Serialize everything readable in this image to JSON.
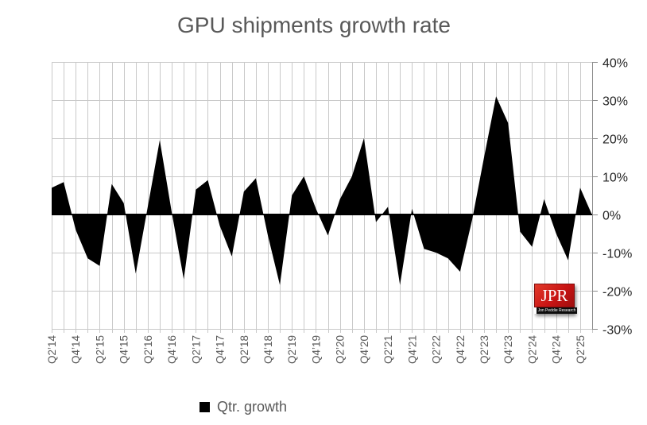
{
  "title": "GPU shipments growth rate",
  "legend": {
    "label": "Qtr. growth",
    "marker_color": "#000000"
  },
  "logo": {
    "text": "JPR",
    "subtext": "Jon Peddie Research",
    "bg_color": "#c81414"
  },
  "colors": {
    "background": "#ffffff",
    "gridline": "#c9c9c9",
    "axis_line": "#8c8c8c",
    "zero_line": "#000000",
    "area_fill": "#000000",
    "title_text": "#595959",
    "y_label_text": "#262626",
    "x_label_text": "#595959"
  },
  "chart_data": {
    "type": "area",
    "title": "GPU shipments growth rate",
    "legend_position": "bottom",
    "grid": "both",
    "xlabel": "",
    "ylabel": "",
    "ylim": [
      -30,
      40
    ],
    "y_ticks": {
      "values": [
        40,
        30,
        20,
        10,
        0,
        -10,
        -20,
        -30
      ],
      "labels": [
        "40%",
        "30%",
        "20%",
        "10%",
        "0%",
        "-10%",
        "-20%",
        "-30%"
      ]
    },
    "x_axis_shown_labels": [
      "Q2’14",
      "Q4’14",
      "Q2’15",
      "Q4’15",
      "Q2’16",
      "Q4’16",
      "Q2’17",
      "Q4’17",
      "Q2’18",
      "Q4’18",
      "Q2’19",
      "Q4’19",
      "Q2’20",
      "Q4’20",
      "Q2’21",
      "Q4’21",
      "Q2’22",
      "Q4’22",
      "Q2’23",
      "Q4’23",
      "Q2’24",
      "Q4’24",
      "Q2’25"
    ],
    "x_label_step": 2,
    "categories": [
      "Q2’14",
      "Q3’14",
      "Q4’14",
      "Q1’15",
      "Q2’15",
      "Q3’15",
      "Q4’15",
      "Q1’16",
      "Q2’16",
      "Q3’16",
      "Q4’16",
      "Q1’17",
      "Q2’17",
      "Q3’17",
      "Q4’17",
      "Q1’18",
      "Q2’18",
      "Q3’18",
      "Q4’18",
      "Q1’19",
      "Q2’19",
      "Q3’19",
      "Q4’19",
      "Q1’20",
      "Q2’20",
      "Q3’20",
      "Q4’20",
      "Q1’21",
      "Q2’21",
      "Q3’21",
      "Q4’21",
      "Q1’22",
      "Q2’22",
      "Q3’22",
      "Q4’22",
      "Q1’23",
      "Q2’23",
      "Q3’23",
      "Q4’23",
      "Q1’24",
      "Q2’24",
      "Q3’24",
      "Q4’24",
      "Q1’25",
      "Q2’25"
    ],
    "series": [
      {
        "name": "Qtr. growth",
        "color": "#000000",
        "values": [
          7,
          8.5,
          -4,
          -11.5,
          -13.5,
          8,
          3,
          -15.5,
          2,
          19.5,
          0.5,
          -17,
          6.5,
          9,
          -3,
          -11,
          6,
          9.5,
          -5.5,
          -18.5,
          5,
          10,
          1.5,
          -5.5,
          4,
          10,
          20,
          -2,
          2,
          -18.5,
          1.5,
          -9,
          -10,
          -11.5,
          -15,
          -1.5,
          15,
          31,
          24,
          -4.5,
          -8.5,
          4,
          -5,
          -12,
          7
        ]
      }
    ]
  }
}
